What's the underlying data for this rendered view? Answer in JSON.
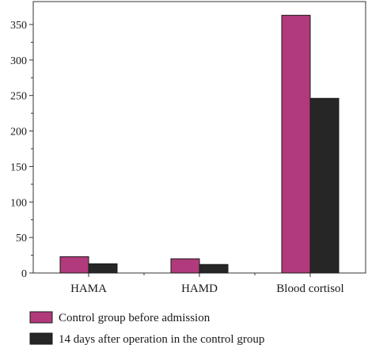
{
  "chart_data": {
    "type": "bar",
    "categories": [
      "HAMA",
      "HAMD",
      "Blood cortisol"
    ],
    "series": [
      {
        "name": "Control group before admission",
        "color": "#b03a7c",
        "values": [
          23,
          20,
          363
        ]
      },
      {
        "name": "14 days after operation in the control group",
        "color": "#262626",
        "values": [
          13,
          12,
          246
        ]
      }
    ],
    "ylim": [
      0,
      360
    ],
    "yticks": [
      0,
      50,
      100,
      150,
      200,
      250,
      300,
      350
    ],
    "xlabel": "",
    "ylabel": "",
    "grid": false,
    "legend_position": "bottom-left"
  }
}
